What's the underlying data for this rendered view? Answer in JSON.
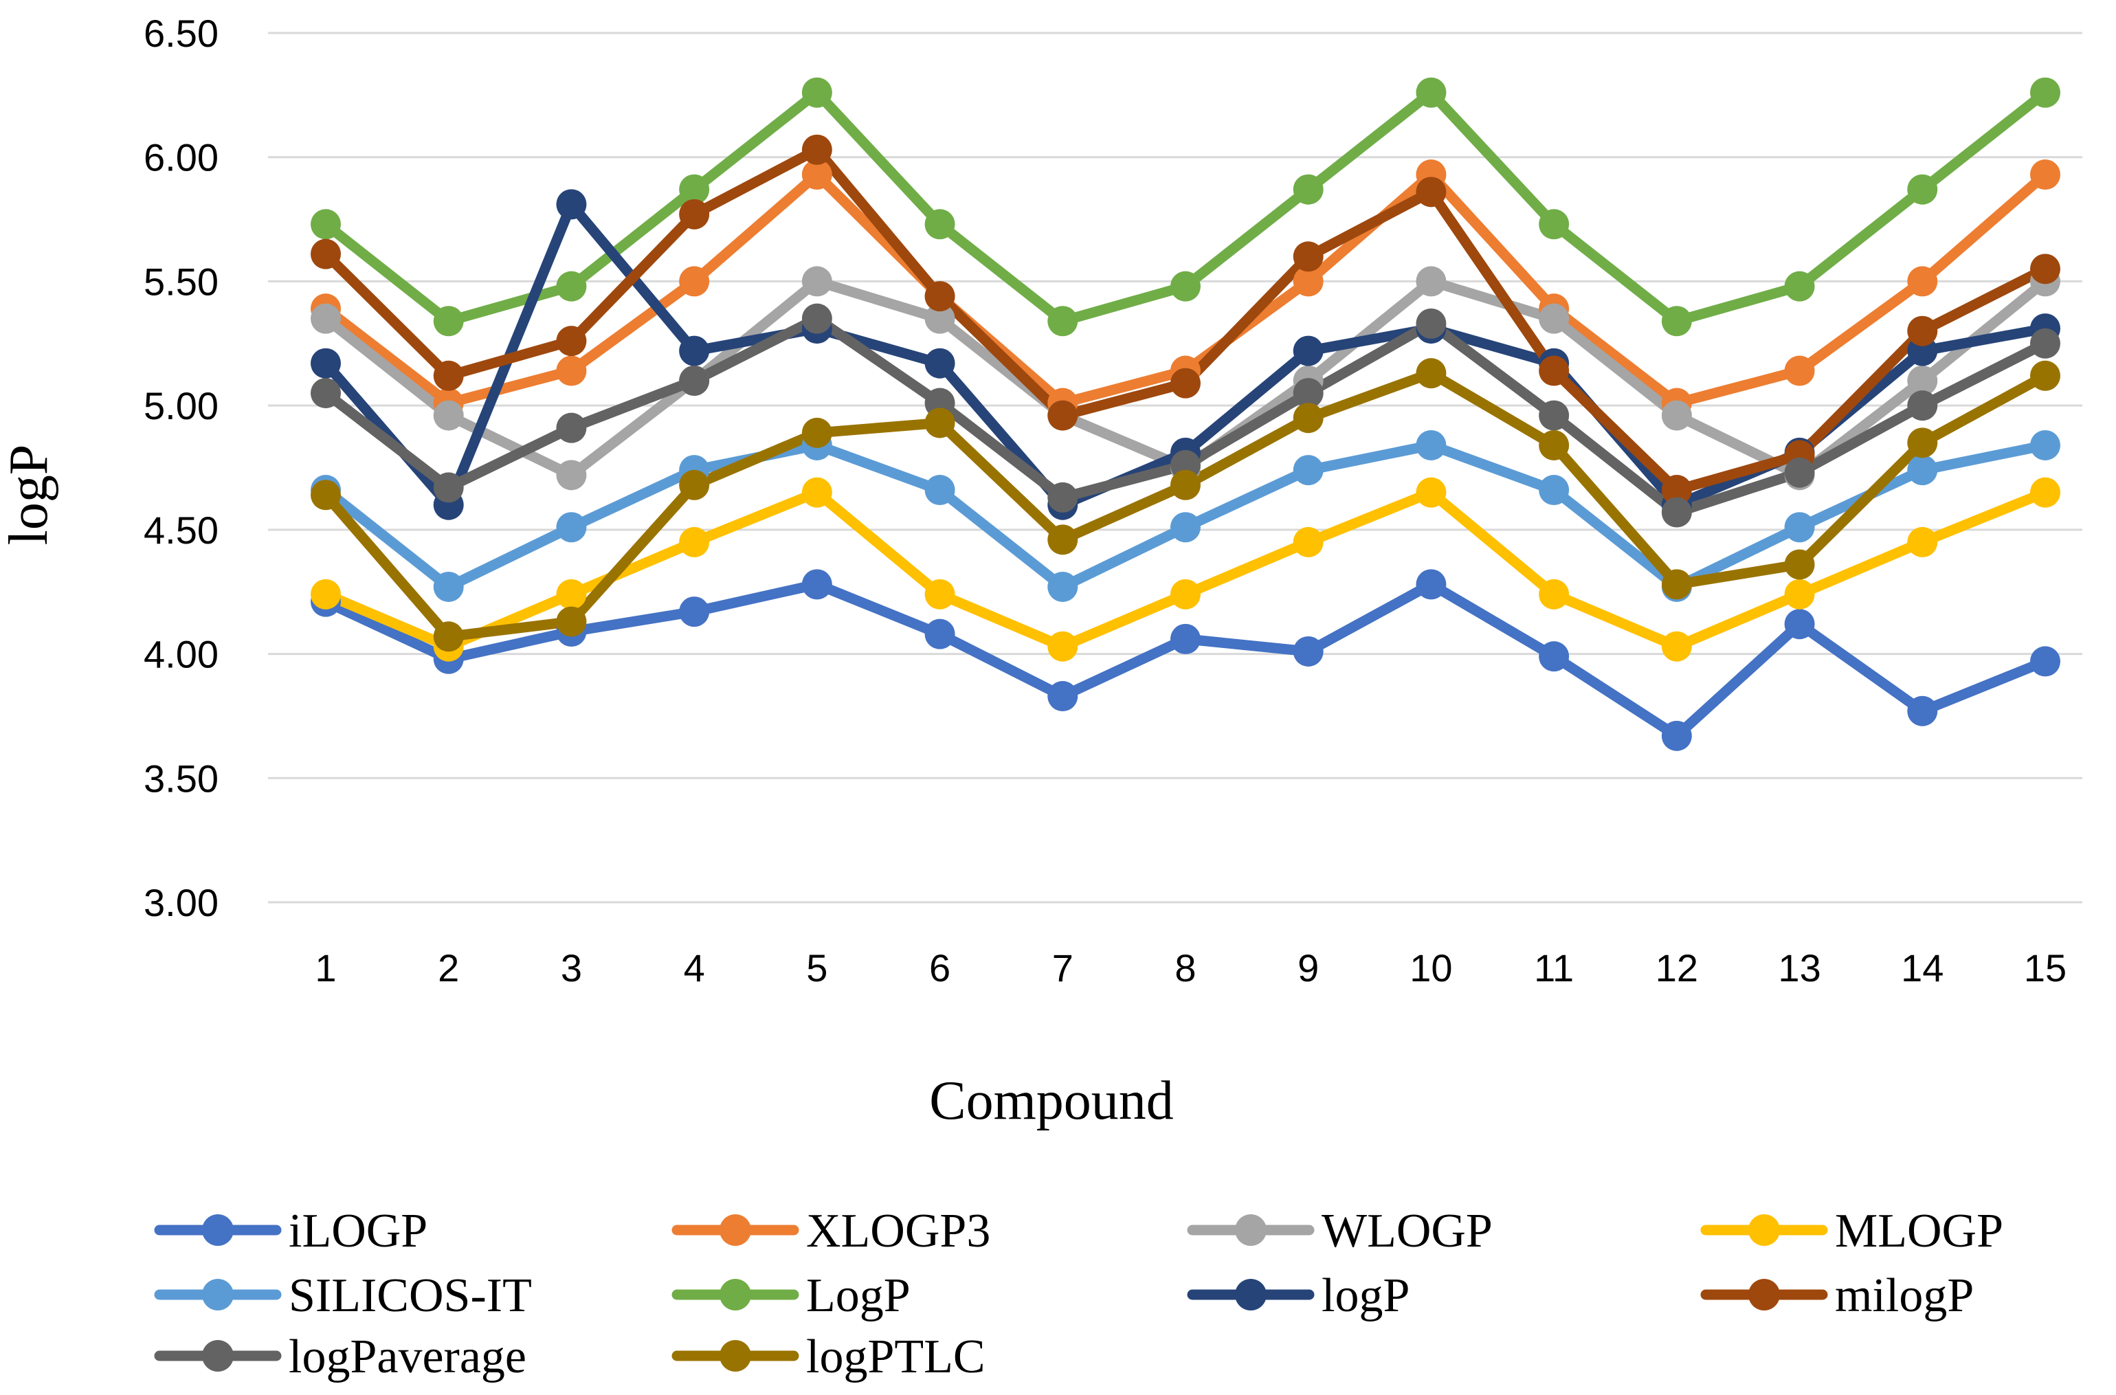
{
  "chart_data": {
    "type": "line",
    "xlabel": "Compound",
    "ylabel": "logP",
    "ylim": [
      3.0,
      6.5
    ],
    "ytick_step": 0.5,
    "ytick_labels": [
      "3.00",
      "3.50",
      "4.00",
      "4.50",
      "5.00",
      "5.50",
      "6.00",
      "6.50"
    ],
    "categories": [
      "1",
      "2",
      "3",
      "4",
      "5",
      "6",
      "7",
      "8",
      "9",
      "10",
      "11",
      "12",
      "13",
      "14",
      "15"
    ],
    "grid": true,
    "legend_position": "bottom",
    "series": [
      {
        "name": "iLOGP",
        "color": "#4472C4",
        "values": [
          4.21,
          3.98,
          4.09,
          4.17,
          4.28,
          4.08,
          3.83,
          4.06,
          4.01,
          4.28,
          3.99,
          3.67,
          4.12,
          3.77,
          3.97
        ]
      },
      {
        "name": "XLOGP3",
        "color": "#ED7D31",
        "values": [
          5.39,
          5.01,
          5.14,
          5.5,
          5.93,
          5.44,
          5.01,
          5.14,
          5.5,
          5.93,
          5.39,
          5.01,
          5.14,
          5.5,
          5.93
        ]
      },
      {
        "name": "WLOGP",
        "color": "#A5A5A5",
        "values": [
          5.35,
          4.96,
          4.72,
          5.1,
          5.5,
          5.35,
          4.96,
          4.75,
          5.1,
          5.5,
          5.35,
          4.96,
          4.72,
          5.1,
          5.5
        ]
      },
      {
        "name": "MLOGP",
        "color": "#FFC000",
        "values": [
          4.24,
          4.03,
          4.24,
          4.45,
          4.65,
          4.24,
          4.03,
          4.24,
          4.45,
          4.65,
          4.24,
          4.03,
          4.24,
          4.45,
          4.65
        ]
      },
      {
        "name": "SILICOS-IT",
        "color": "#5B9BD5",
        "values": [
          4.66,
          4.27,
          4.51,
          4.74,
          4.84,
          4.66,
          4.27,
          4.51,
          4.74,
          4.84,
          4.66,
          4.27,
          4.51,
          4.74,
          4.84
        ]
      },
      {
        "name": "LogP",
        "color": "#70AD47",
        "values": [
          5.73,
          5.34,
          5.48,
          5.87,
          6.26,
          5.73,
          5.34,
          5.48,
          5.87,
          6.26,
          5.73,
          5.34,
          5.48,
          5.87,
          6.26
        ]
      },
      {
        "name": "logP",
        "color": "#264478",
        "values": [
          5.17,
          4.6,
          5.81,
          5.22,
          5.31,
          5.17,
          4.6,
          4.81,
          5.22,
          5.31,
          5.17,
          4.6,
          4.81,
          5.22,
          5.31
        ]
      },
      {
        "name": "milogP",
        "color": "#9E480E",
        "values": [
          5.61,
          5.12,
          5.26,
          5.77,
          6.03,
          5.44,
          4.96,
          5.09,
          5.6,
          5.86,
          5.14,
          4.66,
          4.8,
          5.3,
          5.55
        ]
      },
      {
        "name": "logPaverage",
        "color": "#636363",
        "values": [
          5.05,
          4.67,
          4.91,
          5.1,
          5.35,
          5.01,
          4.63,
          4.76,
          5.05,
          5.33,
          4.96,
          4.57,
          4.73,
          5.0,
          5.25
        ]
      },
      {
        "name": "logPTLC",
        "color": "#997300",
        "values": [
          4.64,
          4.07,
          4.13,
          4.68,
          4.89,
          4.93,
          4.46,
          4.68,
          4.95,
          5.13,
          4.84,
          4.28,
          4.36,
          4.85,
          5.12
        ]
      }
    ]
  }
}
